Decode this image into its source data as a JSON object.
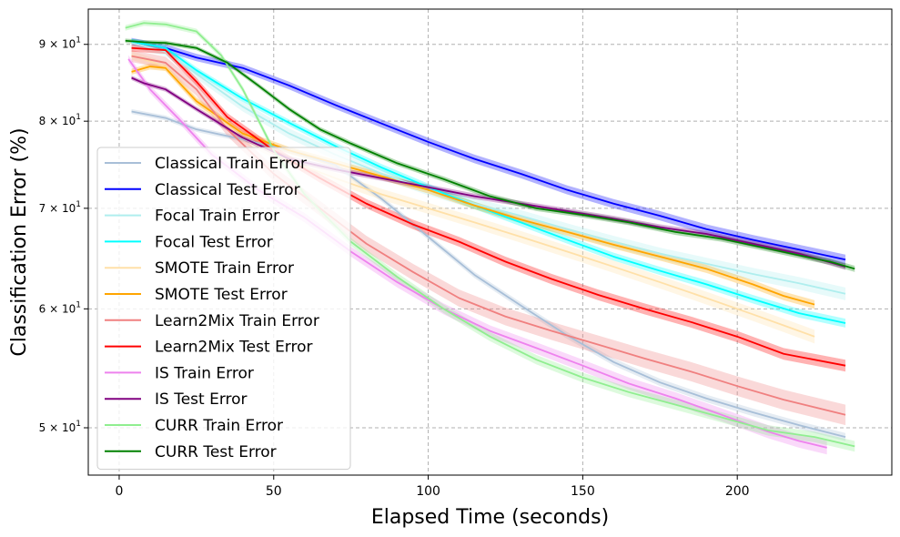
{
  "chart_data": {
    "type": "line",
    "title": "",
    "xlabel": "Elapsed Time (seconds)",
    "ylabel": "Classification Error (%)",
    "xlim": [
      -10,
      250
    ],
    "ylim": [
      46.5,
      95
    ],
    "yscale": "log",
    "grid": true,
    "legend_position": "lower-left",
    "xticks": [
      0,
      50,
      100,
      150,
      200
    ],
    "xtick_labels": [
      "0",
      "50",
      "100",
      "150",
      "200"
    ],
    "yticks": [
      50,
      60,
      70,
      80,
      90
    ],
    "ytick_labels": [
      {
        "base": "5 × 10",
        "exp": "1"
      },
      {
        "base": "6 × 10",
        "exp": "1"
      },
      {
        "base": "7 × 10",
        "exp": "1"
      },
      {
        "base": "8 × 10",
        "exp": "1"
      },
      {
        "base": "9 × 10",
        "exp": "1"
      }
    ],
    "series": [
      {
        "name": "Classical Train Error",
        "color": "#a8bfd8",
        "band": 0.3,
        "x": [
          4,
          15,
          25,
          40,
          55,
          70,
          85,
          100,
          115,
          130,
          145,
          160,
          175,
          190,
          205,
          220,
          235
        ],
        "y": [
          81.2,
          80.4,
          79,
          77.8,
          76.5,
          74.8,
          71,
          67,
          63.2,
          60.3,
          57.6,
          55.3,
          53.6,
          52.3,
          51.2,
          50.2,
          49.3
        ]
      },
      {
        "name": "Classical Test Error",
        "color": "#0000ff",
        "band": 0.5,
        "x": [
          4,
          15,
          25,
          40,
          55,
          70,
          85,
          100,
          115,
          130,
          145,
          160,
          175,
          190,
          205,
          220,
          235
        ],
        "y": [
          90.4,
          89.5,
          88.2,
          86.8,
          84.5,
          82,
          79.7,
          77.5,
          75.5,
          73.8,
          72,
          70.5,
          69.2,
          67.8,
          66.7,
          65.7,
          64.7
        ]
      },
      {
        "name": "Focal Train Error",
        "color": "#afeeee",
        "band": 0.6,
        "x": [
          4,
          15,
          25,
          40,
          55,
          70,
          85,
          100,
          115,
          130,
          145,
          160,
          175,
          190,
          205,
          220,
          235
        ],
        "y": [
          90.2,
          89,
          86,
          81.8,
          78.5,
          76,
          73.8,
          72,
          70.5,
          69.2,
          67.8,
          66.5,
          65.3,
          64.3,
          63.3,
          62.4,
          61.4
        ]
      },
      {
        "name": "Focal Test Error",
        "color": "#00ffff",
        "band": 0.4,
        "x": [
          4,
          15,
          25,
          40,
          55,
          70,
          85,
          100,
          115,
          130,
          145,
          160,
          175,
          190,
          205,
          220,
          235
        ],
        "y": [
          90.4,
          89.5,
          86.5,
          82.8,
          79.8,
          77,
          74.5,
          72.3,
          70.3,
          68.5,
          66.7,
          65,
          63.6,
          62.3,
          60.9,
          59.6,
          58.7
        ]
      },
      {
        "name": "SMOTE Train Error",
        "color": "#ffe0a8",
        "band": 0.6,
        "x": [
          4,
          15,
          25,
          40,
          55,
          70,
          85,
          100,
          115,
          130,
          145,
          160,
          175,
          190,
          205,
          215,
          225
        ],
        "y": [
          88.5,
          87,
          82.5,
          78,
          75.3,
          73.3,
          71.5,
          70,
          68.5,
          67,
          65.5,
          64,
          62.5,
          61,
          59.5,
          58.5,
          57.5
        ]
      },
      {
        "name": "SMOTE Test Error",
        "color": "#ffa500",
        "band": 0.4,
        "x": [
          4,
          10,
          15,
          25,
          40,
          55,
          70,
          85,
          100,
          115,
          130,
          145,
          160,
          175,
          190,
          205,
          215,
          225
        ],
        "y": [
          86.3,
          87,
          86.8,
          82.5,
          78.5,
          76.5,
          75,
          73.5,
          72,
          70.3,
          68.8,
          67.5,
          66.2,
          65,
          63.8,
          62.3,
          61.2,
          60.4
        ]
      },
      {
        "name": "Learn2Mix Train Error",
        "color": "#f08080",
        "band": 0.8,
        "x": [
          4,
          15,
          25,
          35,
          50,
          65,
          80,
          95,
          110,
          125,
          140,
          155,
          170,
          185,
          200,
          215,
          235
        ],
        "y": [
          88.4,
          87.5,
          84,
          79,
          73.8,
          70,
          66.3,
          63.5,
          61,
          59.3,
          58,
          56.8,
          55.6,
          54.5,
          53.3,
          52.2,
          51
        ]
      },
      {
        "name": "Learn2Mix Test Error",
        "color": "#ff0000",
        "band": 0.5,
        "x": [
          4,
          15,
          25,
          35,
          50,
          65,
          80,
          95,
          110,
          125,
          140,
          155,
          170,
          185,
          200,
          215,
          235
        ],
        "y": [
          89.5,
          89.2,
          85,
          80.5,
          76.5,
          73.3,
          70.5,
          68.3,
          66.5,
          64.5,
          62.8,
          61.3,
          60,
          58.8,
          57.5,
          56,
          55
        ]
      },
      {
        "name": "IS Train Error",
        "color": "#ee82ee",
        "band": 0.5,
        "x": [
          3,
          10,
          20,
          30,
          45,
          60,
          75,
          90,
          105,
          120,
          135,
          150,
          165,
          180,
          195,
          210,
          220,
          229
        ],
        "y": [
          88,
          84,
          80,
          76,
          72,
          69,
          65.5,
          62.5,
          60,
          58,
          56.5,
          55,
          53.5,
          52.3,
          51,
          49.7,
          49,
          48.5
        ]
      },
      {
        "name": "IS Test Error",
        "color": "#800080",
        "band": 0.3,
        "x": [
          4,
          8,
          15,
          25,
          40,
          55,
          70,
          85,
          100,
          115,
          130,
          145,
          160,
          175,
          190,
          205,
          220,
          235
        ],
        "y": [
          85.5,
          84.8,
          84,
          81.5,
          78,
          75.5,
          74.3,
          73.3,
          72.3,
          71.3,
          70.5,
          69.7,
          68.9,
          68,
          67.3,
          66.3,
          65.3,
          64
        ]
      },
      {
        "name": "CURR Train Error",
        "color": "#90ee90",
        "band": 0.4,
        "x": [
          2,
          8,
          15,
          25,
          33,
          40,
          50,
          60,
          75,
          90,
          105,
          120,
          135,
          150,
          165,
          180,
          195,
          210,
          225,
          238
        ],
        "y": [
          92.3,
          93,
          92.8,
          91.8,
          88.5,
          84,
          76.5,
          71.5,
          66.5,
          63,
          60,
          57.5,
          55.5,
          54,
          52.8,
          51.8,
          50.8,
          49.8,
          49.3,
          48.6
        ]
      },
      {
        "name": "CURR Test Error",
        "color": "#008000",
        "band": 0.3,
        "x": [
          2,
          8,
          15,
          25,
          35,
          45,
          55,
          65,
          75,
          90,
          105,
          120,
          135,
          150,
          165,
          180,
          195,
          210,
          225,
          230,
          238
        ],
        "y": [
          90.5,
          90.3,
          90.2,
          89.5,
          87.5,
          84.5,
          81.5,
          79,
          77.3,
          75,
          73.2,
          71.3,
          70,
          69.3,
          68.5,
          67.5,
          66.8,
          65.8,
          64.8,
          64.5,
          63.8
        ]
      }
    ]
  }
}
